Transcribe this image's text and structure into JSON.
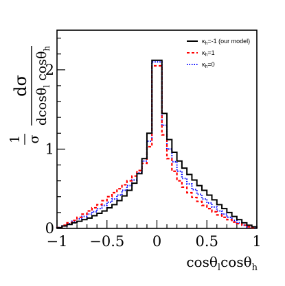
{
  "chart_data": {
    "type": "line",
    "step": true,
    "x_edges": [
      -1.0,
      -0.95,
      -0.9,
      -0.85,
      -0.8,
      -0.75,
      -0.7,
      -0.65,
      -0.6,
      -0.55,
      -0.5,
      -0.45,
      -0.4,
      -0.35,
      -0.3,
      -0.25,
      -0.2,
      -0.15,
      -0.1,
      -0.05,
      0.0,
      0.05,
      0.1,
      0.15,
      0.2,
      0.25,
      0.3,
      0.35,
      0.4,
      0.45,
      0.5,
      0.55,
      0.6,
      0.65,
      0.7,
      0.75,
      0.8,
      0.85,
      0.9,
      0.95,
      1.0
    ],
    "series": [
      {
        "name": "κh=-1 (our model)",
        "color": "#000000",
        "dash": "solid",
        "values": [
          0.01,
          0.03,
          0.05,
          0.07,
          0.09,
          0.11,
          0.13,
          0.16,
          0.19,
          0.22,
          0.26,
          0.3,
          0.35,
          0.41,
          0.48,
          0.57,
          0.69,
          0.88,
          1.2,
          2.12,
          2.12,
          1.45,
          1.12,
          0.96,
          0.85,
          0.76,
          0.68,
          0.61,
          0.54,
          0.48,
          0.42,
          0.36,
          0.3,
          0.25,
          0.2,
          0.15,
          0.11,
          0.07,
          0.04,
          0.02
        ]
      },
      {
        "name": "κh=1",
        "color": "#ff0000",
        "dash": "dashed",
        "values": [
          0.01,
          0.04,
          0.07,
          0.1,
          0.14,
          0.18,
          0.22,
          0.26,
          0.3,
          0.35,
          0.4,
          0.45,
          0.5,
          0.55,
          0.6,
          0.66,
          0.73,
          0.82,
          1.03,
          2.05,
          2.05,
          1.18,
          0.88,
          0.72,
          0.6,
          0.52,
          0.45,
          0.39,
          0.34,
          0.29,
          0.25,
          0.21,
          0.17,
          0.14,
          0.11,
          0.08,
          0.06,
          0.04,
          0.02,
          0.01
        ]
      },
      {
        "name": "κh=0",
        "color": "#0000ff",
        "dash": "dotted",
        "values": [
          0.01,
          0.03,
          0.06,
          0.09,
          0.12,
          0.15,
          0.18,
          0.21,
          0.25,
          0.29,
          0.33,
          0.37,
          0.42,
          0.48,
          0.54,
          0.61,
          0.7,
          0.85,
          1.1,
          2.1,
          2.1,
          1.3,
          1.0,
          0.84,
          0.72,
          0.63,
          0.56,
          0.49,
          0.43,
          0.37,
          0.32,
          0.27,
          0.22,
          0.18,
          0.14,
          0.1,
          0.07,
          0.04,
          0.02,
          0.01
        ]
      }
    ],
    "xlim": [
      -1,
      1
    ],
    "ylim": [
      0,
      2.5
    ],
    "x_ticks": [
      -1,
      -0.5,
      0,
      0.5,
      1
    ],
    "x_tick_labels": [
      "−1",
      "−0.5",
      "0",
      "0.5",
      "1"
    ],
    "y_ticks": [
      0,
      1,
      2
    ],
    "y_tick_labels": [
      "0",
      "1",
      "2"
    ],
    "legend_position": "top-right",
    "grid": false
  }
}
